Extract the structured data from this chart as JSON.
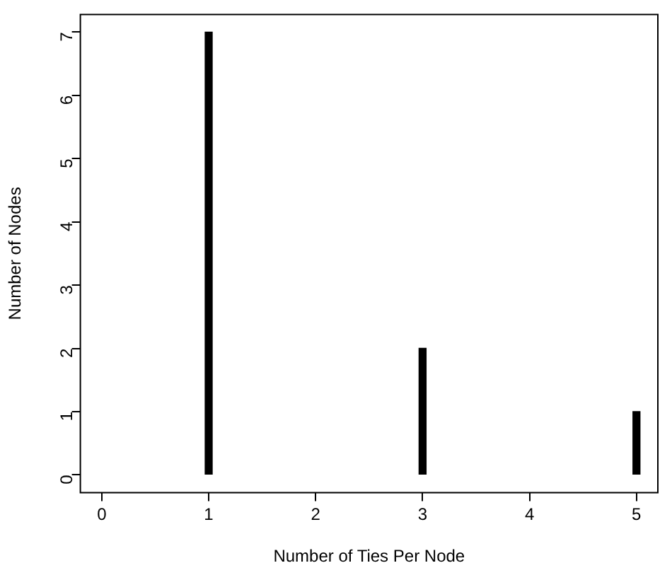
{
  "chart_data": {
    "type": "bar",
    "xlabel": "Number of Ties Per Node",
    "ylabel": "Number of Nodes",
    "x": [
      1,
      3,
      5
    ],
    "values": [
      7,
      2,
      1
    ],
    "color": "#000000",
    "xlim": [
      -0.2,
      5.2
    ],
    "xticks": [
      0,
      1,
      2,
      3,
      4,
      5
    ],
    "ylim": [
      -0.28,
      7.28
    ],
    "yticks": [
      0,
      1,
      2,
      3,
      4,
      5,
      6,
      7
    ],
    "grid": false,
    "legend": false
  }
}
